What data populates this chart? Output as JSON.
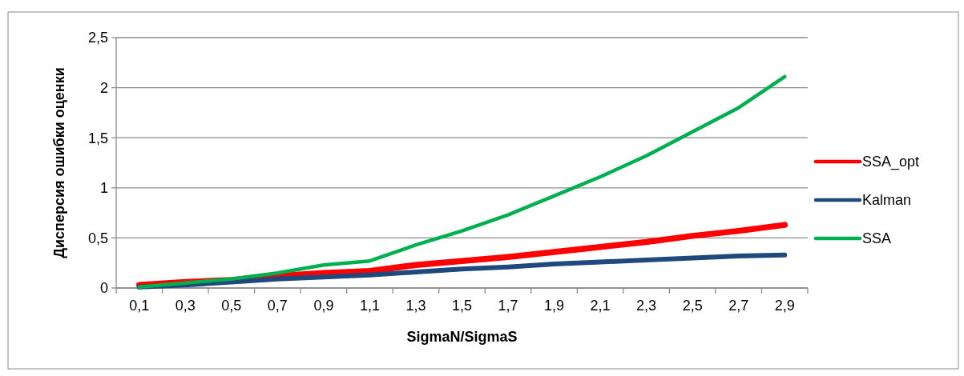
{
  "chart_data": {
    "type": "line",
    "xlabel": "SigmaN/SigmaS",
    "ylabel": "Дисперсия ошибки оценки",
    "categories": [
      "0,1",
      "0,3",
      "0,5",
      "0,7",
      "0,9",
      "1,1",
      "1,3",
      "1,5",
      "1,7",
      "1,9",
      "2,1",
      "2,3",
      "2,5",
      "2,7",
      "2,9"
    ],
    "series": [
      {
        "name": "SSA_opt",
        "color": "#ff0000",
        "values": [
          0.03,
          0.06,
          0.08,
          0.12,
          0.15,
          0.17,
          0.23,
          0.27,
          0.31,
          0.36,
          0.41,
          0.46,
          0.52,
          0.57,
          0.63
        ]
      },
      {
        "name": "Kalman",
        "color": "#1f497d",
        "values": [
          0.01,
          0.03,
          0.06,
          0.09,
          0.11,
          0.13,
          0.16,
          0.19,
          0.21,
          0.24,
          0.26,
          0.28,
          0.3,
          0.32,
          0.33
        ]
      },
      {
        "name": "SSA",
        "color": "#00b050",
        "values": [
          0.01,
          0.05,
          0.09,
          0.15,
          0.23,
          0.27,
          0.43,
          0.57,
          0.73,
          0.92,
          1.11,
          1.32,
          1.56,
          1.8,
          2.11
        ]
      }
    ],
    "ylim": [
      0,
      2.5
    ],
    "yticks": [
      {
        "value": 0,
        "label": "0"
      },
      {
        "value": 0.5,
        "label": "0,5"
      },
      {
        "value": 1,
        "label": "1"
      },
      {
        "value": 1.5,
        "label": "1,5"
      },
      {
        "value": 2,
        "label": "2"
      },
      {
        "value": 2.5,
        "label": "2,5"
      }
    ],
    "grid": "y",
    "legend": "right",
    "marker": "none",
    "line_style": "solid"
  }
}
